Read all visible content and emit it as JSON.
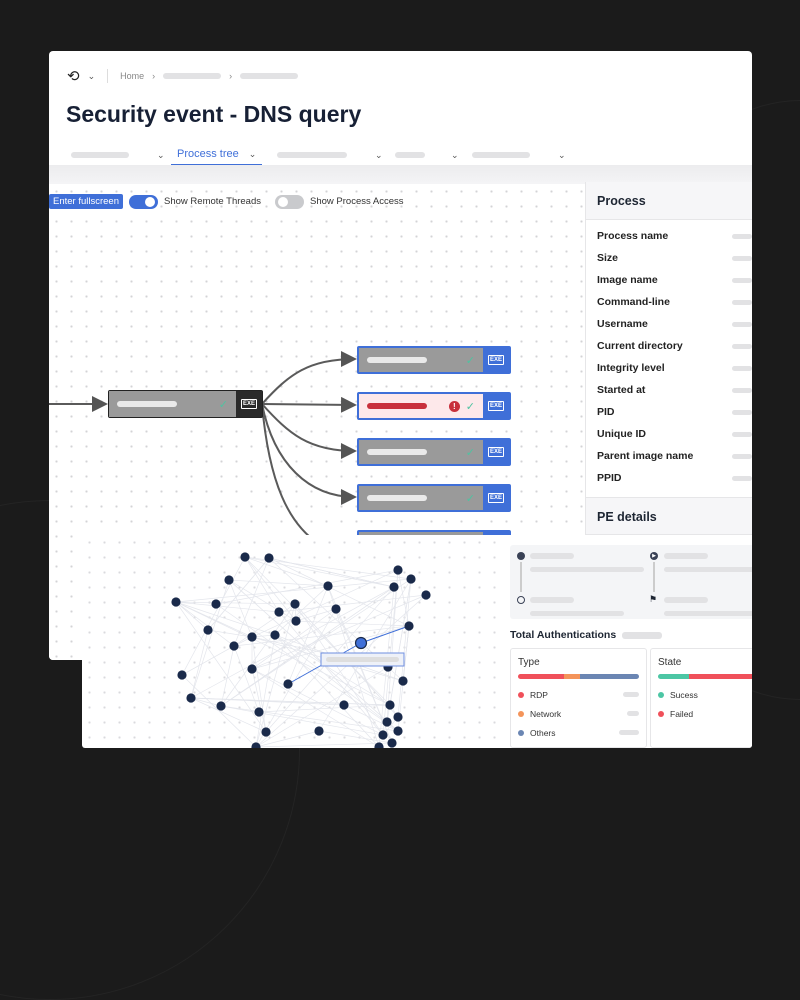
{
  "breadcrumb": {
    "home": "Home"
  },
  "page_title": "Security event - DNS query",
  "tabs": [
    {
      "label": ""
    },
    {
      "label": "Process tree",
      "active": true
    },
    {
      "label": ""
    },
    {
      "label": ""
    },
    {
      "label": ""
    }
  ],
  "toolbar": {
    "fullscreen": "Enter fullscreen",
    "remote_threads": "Show Remote Threads",
    "remote_threads_on": true,
    "process_access": "Show Process Access",
    "process_access_on": false
  },
  "process_tree": {
    "nodes": [
      {
        "role": "parent",
        "status": "ok",
        "icon": "exe-file-icon"
      },
      {
        "role": "child",
        "status": "ok"
      },
      {
        "role": "child",
        "status": "alert"
      },
      {
        "role": "child",
        "status": "ok"
      },
      {
        "role": "child",
        "status": "ok"
      },
      {
        "role": "child",
        "status": "ok"
      }
    ]
  },
  "side_panel": {
    "section_title": "Process",
    "fields": [
      "Process name",
      "Size",
      "Image name",
      "Command-line",
      "Username",
      "Current directory",
      "Integrity level",
      "Started at",
      "PID",
      "Unique ID",
      "Parent image name",
      "PPID"
    ],
    "next_section": "PE details"
  },
  "auth": {
    "title": "Total Authentications",
    "type": {
      "title": "Type",
      "items": [
        {
          "label": "RDP",
          "color": "#f0505a"
        },
        {
          "label": "Network",
          "color": "#f4945a"
        },
        {
          "label": "Others",
          "color": "#6b86b3"
        }
      ]
    },
    "state": {
      "title": "State",
      "items": [
        {
          "label": "Sucess",
          "color": "#4cc6a4"
        },
        {
          "label": "Failed",
          "color": "#f0505a"
        }
      ]
    }
  },
  "colors": {
    "accent": "#3f6fd8",
    "node": "#1a2a4a",
    "alert": "#d03040"
  }
}
